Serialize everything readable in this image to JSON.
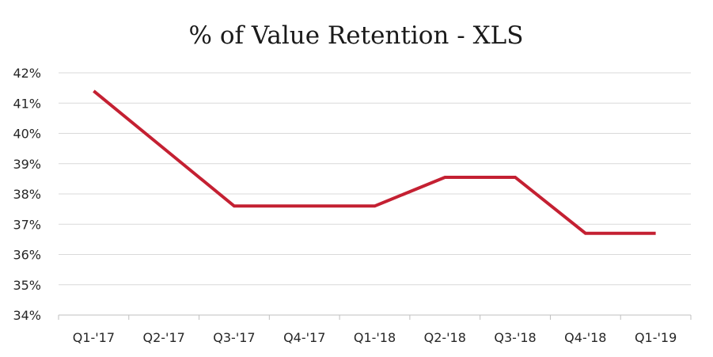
{
  "chart_data": {
    "type": "line",
    "title": "% of Value Retention - XLS",
    "xlabel": "",
    "ylabel": "",
    "categories": [
      "Q1-'17",
      "Q2-'17",
      "Q3-'17",
      "Q4-'17",
      "Q1-'18",
      "Q2-'18",
      "Q3-'18",
      "Q4-'18",
      "Q1-'19"
    ],
    "series": [
      {
        "name": "% of Value Retention",
        "values": [
          41.4,
          39.5,
          37.6,
          37.6,
          37.6,
          38.55,
          38.55,
          36.7,
          36.7
        ],
        "color": "#c42032"
      }
    ],
    "ylim": [
      34,
      42
    ],
    "yticks": [
      "34%",
      "35%",
      "36%",
      "37%",
      "38%",
      "39%",
      "40%",
      "41%",
      "42%"
    ],
    "grid": true,
    "legend": "none"
  }
}
